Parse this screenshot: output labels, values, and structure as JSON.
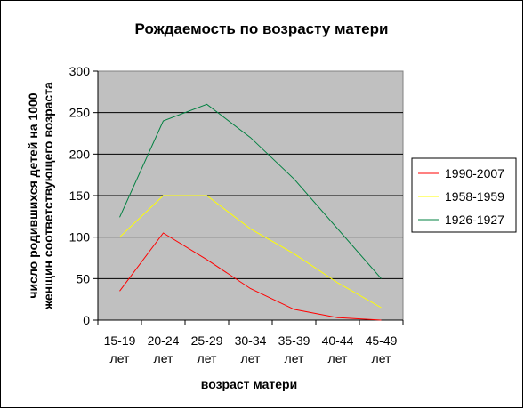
{
  "chart_data": {
    "type": "line",
    "title": "Рождаемость по возрасту матери",
    "xlabel": "возраст матери",
    "ylabel": [
      "число родившихся детей на 1000",
      "женщин соответствующего возраста"
    ],
    "categories": [
      [
        "15-19",
        "лет"
      ],
      [
        "20-24",
        "лет"
      ],
      [
        "25-29",
        "лет"
      ],
      [
        "30-34",
        "лет"
      ],
      [
        "35-39",
        "лет"
      ],
      [
        "40-44",
        "лет"
      ],
      [
        "45-49",
        "лет"
      ]
    ],
    "ylim": [
      0,
      300
    ],
    "yticks": [
      "0",
      "50",
      "100",
      "150",
      "200",
      "250",
      "300"
    ],
    "grid": true,
    "legend_position": "right",
    "plot_background": "#c0c0c0",
    "series": [
      {
        "name": "1990-2007",
        "color": "#ff0000",
        "values": [
          35,
          105,
          73,
          38,
          13,
          3,
          0
        ]
      },
      {
        "name": "1958-1959",
        "color": "#ffff00",
        "values": [
          100,
          150,
          150,
          110,
          80,
          45,
          15
        ]
      },
      {
        "name": "1926-1927",
        "color": "#008040",
        "values": [
          124,
          240,
          260,
          220,
          170,
          110,
          50
        ]
      }
    ]
  }
}
